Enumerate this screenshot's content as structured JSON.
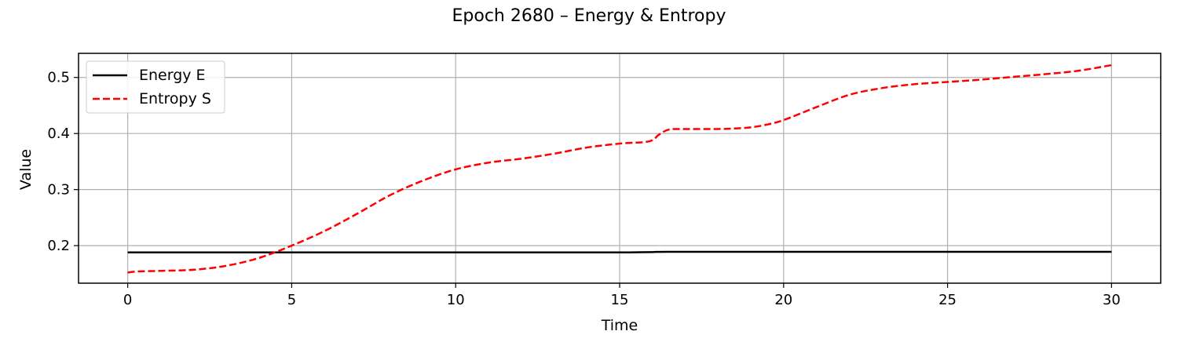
{
  "chart_data": {
    "type": "line",
    "title": "Epoch 2680 – Energy & Entropy",
    "xlabel": "Time",
    "ylabel": "Value",
    "xlim": [
      -1.5,
      31.5
    ],
    "ylim": [
      0.133,
      0.543
    ],
    "xticks": [
      0,
      5,
      10,
      15,
      20,
      25,
      30
    ],
    "yticks": [
      0.2,
      0.3,
      0.4,
      0.5
    ],
    "xtick_labels": [
      "0",
      "5",
      "10",
      "15",
      "20",
      "25",
      "30"
    ],
    "ytick_labels": [
      "0.2",
      "0.3",
      "0.4",
      "0.5"
    ],
    "grid": true,
    "legend_position": "top-left",
    "series": [
      {
        "name": "Energy E",
        "color": "#000000",
        "style": "solid",
        "x": [
          0,
          5,
          10,
          15,
          15.3,
          16,
          16.5,
          20,
          25,
          30
        ],
        "y": [
          0.188,
          0.188,
          0.188,
          0.188,
          0.188,
          0.1885,
          0.189,
          0.189,
          0.189,
          0.189
        ]
      },
      {
        "name": "Entropy S",
        "color": "#ff0000",
        "style": "dashed",
        "x": [
          0,
          0.3,
          1,
          2,
          3,
          4,
          5,
          6,
          7,
          8,
          9,
          10,
          11,
          12,
          13,
          14,
          15,
          15.9,
          16.2,
          16.5,
          17,
          18,
          18.5,
          19,
          19.5,
          20,
          21,
          22,
          23,
          24,
          25,
          26,
          27,
          28,
          29,
          30
        ],
        "y": [
          0.152,
          0.154,
          0.155,
          0.157,
          0.164,
          0.178,
          0.2,
          0.226,
          0.257,
          0.29,
          0.316,
          0.336,
          0.348,
          0.355,
          0.364,
          0.375,
          0.382,
          0.386,
          0.398,
          0.407,
          0.408,
          0.408,
          0.409,
          0.411,
          0.416,
          0.424,
          0.447,
          0.469,
          0.481,
          0.488,
          0.492,
          0.496,
          0.501,
          0.506,
          0.512,
          0.522
        ]
      }
    ]
  }
}
